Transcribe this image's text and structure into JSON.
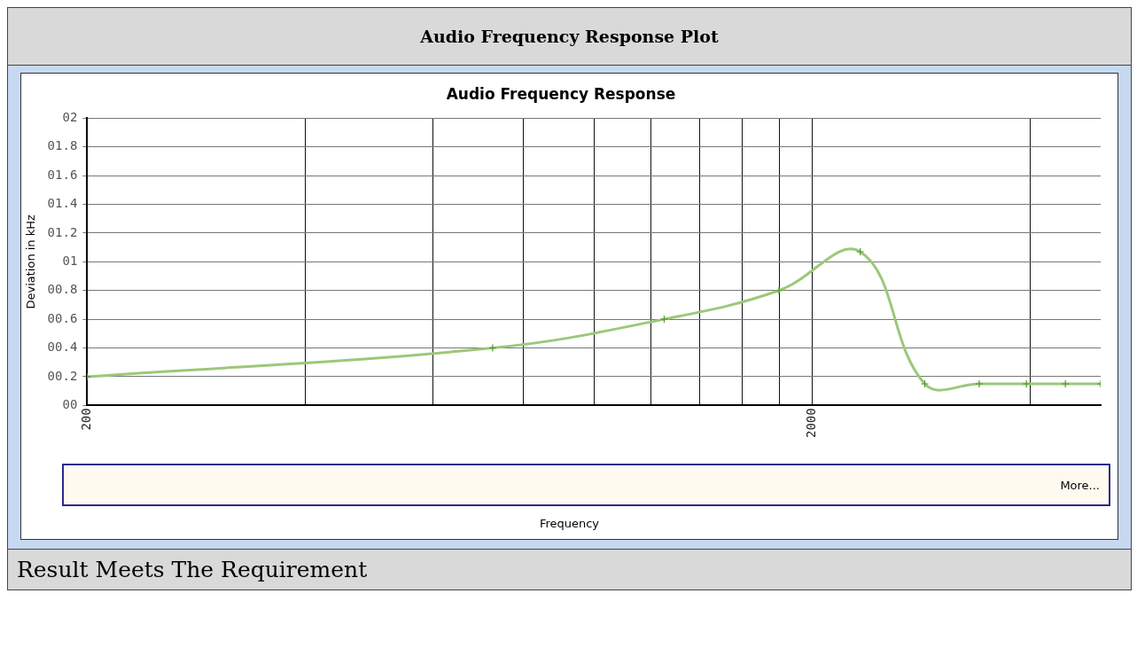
{
  "chart_data": {
    "type": "line",
    "title": "Audio Frequency Response Plot",
    "subtitle": "Audio Frequency Response",
    "ylabel": "Deviation in kHz",
    "x": [
      200,
      725,
      1250,
      1800,
      2330,
      2860,
      3400,
      3950,
      4470,
      5000
    ],
    "series": [
      {
        "color": "#9cc87a",
        "values": [
          0.2,
          0.4,
          0.6,
          0.8,
          1.07,
          0.15,
          0.15,
          0.15,
          0.15,
          0.15
        ]
      }
    ],
    "log": "x",
    "xlim": [
      200,
      5000
    ],
    "xticks": [
      200,
      {
        "value": 400,
        "label": null
      },
      {
        "value": 600,
        "label": null
      },
      {
        "value": 800,
        "label": null
      },
      {
        "value": 1000,
        "label": null
      },
      {
        "value": 1200,
        "label": null
      },
      {
        "value": 1400,
        "label": null
      },
      {
        "value": 1600,
        "label": null
      },
      {
        "value": 1800,
        "label": null
      },
      2000,
      {
        "value": 4000,
        "label": null
      }
    ],
    "ylim": [
      0,
      2
    ],
    "yticks": [
      {
        "value": 0,
        "label": "00"
      },
      {
        "value": 0.2,
        "label": "00.2"
      },
      {
        "value": 0.4,
        "label": "00.4"
      },
      {
        "value": 0.6,
        "label": "00.6"
      },
      {
        "value": 0.8,
        "label": "00.8"
      },
      {
        "value": 1,
        "label": "01"
      },
      {
        "value": 1.2,
        "label": "01.2"
      },
      {
        "value": 1.4,
        "label": "01.4"
      },
      {
        "value": 1.6,
        "label": "01.6"
      },
      {
        "value": 1.8,
        "label": "01.8"
      },
      {
        "value": 2,
        "label": "02"
      }
    ],
    "grid": true,
    "legend": false,
    "marker": "cross",
    "line_style": "solid",
    "annotations": [
      "More...",
      "Frequency",
      "Result Meets The Requirement"
    ]
  }
}
